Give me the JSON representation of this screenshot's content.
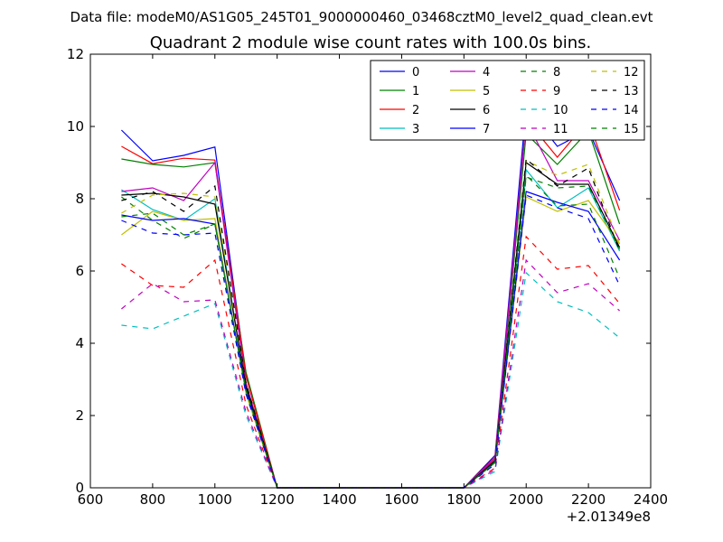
{
  "chart_data": {
    "type": "line",
    "suptitle": "Data file: modeM0/AS1G05_245T01_9000000460_03468cztM0_level2_quad_clean.evt",
    "title": "Quadrant 2 module wise count rates with 100.0s bins.",
    "xlabel": "",
    "ylabel": "",
    "x_offset_label": "+2.01349e8",
    "xlim": [
      600,
      2400
    ],
    "ylim": [
      0,
      12
    ],
    "xticks": [
      600,
      800,
      1000,
      1200,
      1400,
      1600,
      1800,
      2000,
      2200,
      2400
    ],
    "yticks": [
      0,
      2,
      4,
      6,
      8,
      10,
      12
    ],
    "legend_position": "top-right",
    "legend_columns": 4,
    "x": [
      700,
      800,
      900,
      1000,
      1100,
      1200,
      1300,
      1400,
      1500,
      1600,
      1700,
      1800,
      1900,
      2000,
      2100,
      2200,
      2300
    ],
    "series": [
      {
        "name": "0",
        "color": "#0000ff",
        "dash": "solid",
        "values": [
          9.9,
          9.05,
          9.2,
          9.43,
          3.1,
          0,
          0,
          0,
          0,
          0,
          0,
          0,
          0.9,
          10.55,
          9.45,
          9.9,
          7.95
        ]
      },
      {
        "name": "1",
        "color": "#008000",
        "dash": "solid",
        "values": [
          9.1,
          8.95,
          8.88,
          9.0,
          3.2,
          0,
          0,
          0,
          0,
          0,
          0,
          0,
          0.8,
          9.8,
          8.95,
          9.88,
          7.3
        ]
      },
      {
        "name": "2",
        "color": "#ff0000",
        "dash": "solid",
        "values": [
          9.45,
          8.97,
          9.12,
          9.07,
          3.1,
          0,
          0,
          0,
          0,
          0,
          0,
          0,
          0.85,
          10.2,
          9.15,
          10.17,
          7.68
        ]
      },
      {
        "name": "3",
        "color": "#00bfbf",
        "dash": "solid",
        "values": [
          8.25,
          7.7,
          7.4,
          8.0,
          2.8,
          0,
          0,
          0,
          0,
          0,
          0,
          0,
          0.75,
          8.8,
          7.75,
          8.3,
          6.55
        ]
      },
      {
        "name": "4",
        "color": "#bf00bf",
        "dash": "solid",
        "values": [
          8.2,
          8.3,
          7.95,
          9.0,
          2.9,
          0,
          0,
          0,
          0,
          0,
          0,
          0,
          0.8,
          10.15,
          8.5,
          8.5,
          6.85
        ]
      },
      {
        "name": "5",
        "color": "#bfbf00",
        "dash": "solid",
        "values": [
          7.0,
          7.65,
          7.4,
          7.45,
          2.6,
          0,
          0,
          0,
          0,
          0,
          0,
          0,
          0.7,
          8.05,
          7.65,
          7.95,
          6.75
        ]
      },
      {
        "name": "6",
        "color": "#000000",
        "dash": "solid",
        "values": [
          8.1,
          8.15,
          8.05,
          7.85,
          2.8,
          0,
          0,
          0,
          0,
          0,
          0,
          0,
          0.75,
          9.0,
          8.4,
          8.4,
          6.65
        ]
      },
      {
        "name": "7",
        "color": "#0000ff",
        "dash": "solid",
        "values": [
          7.55,
          7.4,
          7.45,
          7.3,
          2.7,
          0,
          0,
          0,
          0,
          0,
          0,
          0,
          0.7,
          8.2,
          7.9,
          7.65,
          6.3
        ]
      },
      {
        "name": "8",
        "color": "#008000",
        "dash": "dashed",
        "values": [
          8.05,
          7.4,
          6.9,
          7.3,
          2.6,
          0,
          0,
          0,
          0,
          0,
          0,
          0,
          0.7,
          8.65,
          7.8,
          7.85,
          5.8
        ]
      },
      {
        "name": "9",
        "color": "#ff0000",
        "dash": "dashed",
        "values": [
          6.2,
          5.6,
          5.55,
          6.3,
          2.3,
          0,
          0,
          0,
          0,
          0,
          0,
          0,
          0.55,
          6.95,
          6.05,
          6.15,
          5.1
        ]
      },
      {
        "name": "10",
        "color": "#00bfbf",
        "dash": "dashed",
        "values": [
          4.5,
          4.4,
          4.75,
          5.1,
          2.0,
          0,
          0,
          0,
          0,
          0,
          0,
          0,
          0.45,
          5.95,
          5.15,
          4.85,
          4.15
        ]
      },
      {
        "name": "11",
        "color": "#bf00bf",
        "dash": "dashed",
        "values": [
          4.95,
          5.65,
          5.15,
          5.2,
          2.1,
          0,
          0,
          0,
          0,
          0,
          0,
          0,
          0.5,
          6.3,
          5.4,
          5.65,
          4.9
        ]
      },
      {
        "name": "12",
        "color": "#bfbf00",
        "dash": "dashed",
        "values": [
          7.6,
          8.1,
          8.15,
          8.05,
          2.9,
          0,
          0,
          0,
          0,
          0,
          0,
          0,
          0.75,
          9.05,
          8.65,
          8.95,
          6.75
        ]
      },
      {
        "name": "13",
        "color": "#000000",
        "dash": "dashed",
        "values": [
          7.95,
          8.2,
          7.65,
          8.35,
          2.9,
          0,
          0,
          0,
          0,
          0,
          0,
          0,
          0.75,
          9.1,
          8.35,
          8.85,
          6.55
        ]
      },
      {
        "name": "14",
        "color": "#0000ff",
        "dash": "dashed",
        "values": [
          7.4,
          7.05,
          7.0,
          7.05,
          2.6,
          0,
          0,
          0,
          0,
          0,
          0,
          0,
          0.65,
          8.1,
          7.75,
          7.45,
          5.6
        ]
      },
      {
        "name": "15",
        "color": "#008000",
        "dash": "dashed",
        "values": [
          7.5,
          7.6,
          7.0,
          7.3,
          2.7,
          0,
          0,
          0,
          0,
          0,
          0,
          0,
          0.7,
          8.6,
          8.3,
          8.35,
          6.6
        ]
      }
    ]
  }
}
